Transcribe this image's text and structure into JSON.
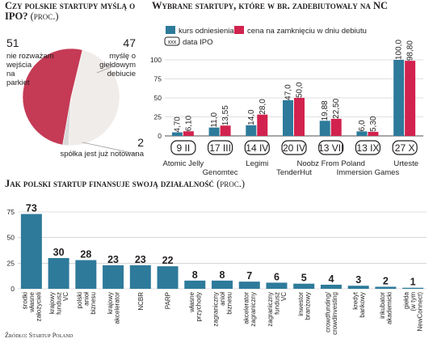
{
  "pie_chart": {
    "title": "Czy polskie startupy myślą o IPO?",
    "unit": "(proc.)"
  },
  "ipo_chart": {
    "title": "Wybrane startupy, które w br. zadebiutowały na NC",
    "legend": {
      "series_a": "kurs odniesienia",
      "series_b": "cena na zamknięciu w dniu debiutu",
      "date_box": "xxx",
      "date_label": "data IPO"
    },
    "y_tick_labels": [
      "100",
      "75",
      "50",
      "25",
      "0"
    ]
  },
  "finance_chart": {
    "title": "Jak polski startup finansuje swoją działalność",
    "unit": "(proc.)",
    "y_tick_labels": [
      "75",
      "50",
      "25",
      "0"
    ]
  },
  "source": "Źródło: Startup Poland",
  "colors": {
    "pie_main": "#c53a55",
    "pie_secondary": "#f0ecea",
    "pie_minor": "#d9d9d9",
    "series_a": "#2e7a9b",
    "series_b": "#d2224e",
    "grid": "#bfbfbf",
    "date_box_border": "#231f20"
  },
  "chart_data": [
    {
      "type": "pie",
      "title": "Czy polskie startupy myślą o IPO?",
      "unit": "proc.",
      "slices": [
        {
          "value": 51,
          "label": "nie rozważam wejścia na parkiet"
        },
        {
          "value": 47,
          "label": "myślę o giełdowym debiucie"
        },
        {
          "value": 2,
          "label": "spółka jest już notowana"
        }
      ]
    },
    {
      "type": "bar",
      "title": "Wybrane startupy, które w br. zadebiutowały na NC",
      "ylim": [
        0,
        100
      ],
      "y_ticks": [
        0,
        25,
        50,
        75,
        100
      ],
      "grid": true,
      "legend_position": "top",
      "categories": [
        "Atomic Jelly",
        "Genomtec",
        "Legimi",
        "TenderHut",
        "Noobz From Poland",
        "Immersion Games",
        "Urteste"
      ],
      "dates": [
        "9 II",
        "17 III",
        "14 IV",
        "20 IV",
        "13 VII",
        "13 IX",
        "27 X"
      ],
      "series": [
        {
          "name": "kurs odniesienia",
          "values": [
            4.7,
            11.0,
            14.0,
            47.0,
            19.88,
            6.0,
            100.0
          ],
          "labels": [
            "4,70",
            "11,0",
            "14,0",
            "47,0",
            "19,88",
            "6,0",
            "100,0"
          ]
        },
        {
          "name": "cena na zamknięciu w dniu debiutu",
          "values": [
            6.1,
            13.55,
            28.0,
            50.0,
            22.5,
            5.3,
            98.8
          ],
          "labels": [
            "6,10",
            "13,55",
            "28,0",
            "50,0",
            "22,50",
            "5,30",
            "98,80"
          ]
        }
      ]
    },
    {
      "type": "bar",
      "title": "Jak polski startup finansuje swoją działalność",
      "unit": "proc.",
      "ylim": [
        0,
        75
      ],
      "y_ticks": [
        0,
        25,
        50,
        75
      ],
      "grid": true,
      "categories": [
        [
          "środki",
          "własne",
          "założycieli"
        ],
        [
          "krajowy",
          "fundusz",
          "VC"
        ],
        [
          "polski",
          "anioł",
          "biznesu"
        ],
        [
          "krajowy",
          "akcelerator"
        ],
        [
          "NCBR"
        ],
        [
          "PARP"
        ],
        [
          "własne",
          "przychody"
        ],
        [
          "zagraniczny",
          "anioł",
          "biznesu"
        ],
        [
          "akcelerator",
          "zagraniczny"
        ],
        [
          "zagraniczny",
          "fundusz",
          "VC"
        ],
        [
          "inwestor",
          "branżowy"
        ],
        [
          "crowdfunding/",
          "crowdinvesting"
        ],
        [
          "kredyt",
          "bankowy"
        ],
        [
          "inkubator",
          "akademicki"
        ],
        [
          "giełda",
          "(w tym",
          "NewConnect)"
        ]
      ],
      "values": [
        73,
        30,
        28,
        23,
        23,
        22,
        8,
        8,
        7,
        6,
        5,
        4,
        3,
        2,
        1
      ]
    }
  ]
}
